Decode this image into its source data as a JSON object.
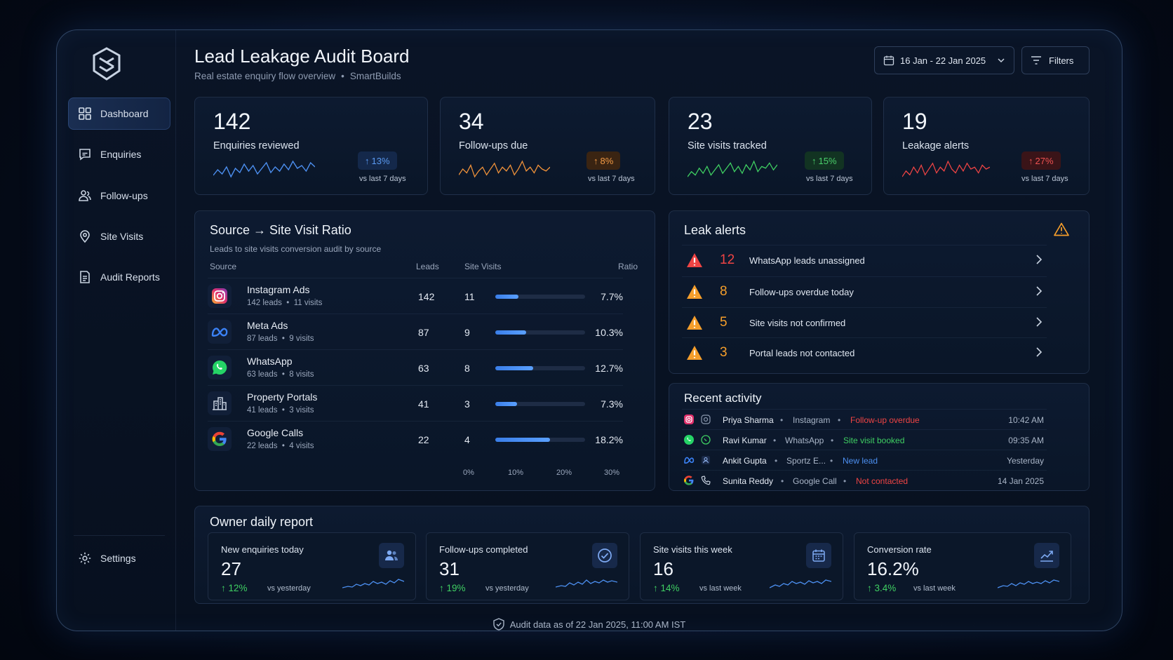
{
  "header": {
    "title": "Lead Leakage Audit Board",
    "subtitle": "Real estate enquiry flow overview",
    "separator": "•",
    "company": "SmartBuilds",
    "date_range": "16 Jan - 22 Jan 2025",
    "filters_label": "Filters"
  },
  "sidebar": {
    "items": [
      {
        "label": "Dashboard",
        "icon": "grid-icon",
        "active": true
      },
      {
        "label": "Enquiries",
        "icon": "chat-icon"
      },
      {
        "label": "Follow-ups",
        "icon": "users-icon"
      },
      {
        "label": "Site Visits",
        "icon": "map-pin-icon"
      },
      {
        "label": "Audit Reports",
        "icon": "report-icon"
      }
    ],
    "settings_label": "Settings"
  },
  "kpis": [
    {
      "value": "142",
      "label": "Enquiries reviewed",
      "delta": "13%",
      "direction": "up",
      "vs": "vs last 7 days",
      "color": "#4c8ff0",
      "spark": [
        10,
        14,
        11,
        16,
        9,
        15,
        12,
        18,
        13,
        17,
        11,
        15,
        19,
        12,
        16,
        13,
        18,
        14,
        20,
        15,
        17,
        13,
        19,
        16
      ]
    },
    {
      "value": "34",
      "label": "Follow-ups due",
      "delta": "8%",
      "direction": "up",
      "vs": "vs last 7 days",
      "color": "#f0923a",
      "spark": [
        12,
        15,
        13,
        17,
        11,
        14,
        16,
        12,
        15,
        18,
        13,
        16,
        14,
        17,
        12,
        15,
        19,
        14,
        16,
        13,
        17,
        15,
        14,
        16
      ]
    },
    {
      "value": "23",
      "label": "Site visits tracked",
      "delta": "15%",
      "direction": "up",
      "vs": "vs last 7 days",
      "color": "#3fcf62",
      "spark": [
        10,
        13,
        11,
        15,
        12,
        16,
        11,
        14,
        17,
        12,
        15,
        18,
        13,
        16,
        12,
        17,
        14,
        19,
        13,
        16,
        15,
        18,
        14,
        17
      ]
    },
    {
      "value": "19",
      "label": "Leakage alerts",
      "delta": "27%",
      "direction": "up",
      "vs": "vs last 7 days",
      "color": "#ef4444",
      "spark": [
        11,
        14,
        12,
        16,
        13,
        17,
        12,
        15,
        18,
        13,
        16,
        14,
        19,
        15,
        13,
        17,
        14,
        18,
        15,
        16,
        13,
        17,
        15,
        16
      ]
    }
  ],
  "source_panel": {
    "title": "Source → Site Visit Ratio",
    "subtitle": "Leads to site visits conversion audit by source",
    "headers": {
      "source": "Source",
      "leads": "Leads",
      "visits": "Site Visits",
      "ratio": "Ratio"
    },
    "rows": [
      {
        "name": "Instagram Ads",
        "meta_leads": "142 leads",
        "meta_visits": "11 visits",
        "leads": "142",
        "visits": "11",
        "ratio": "7.7%",
        "ratio_value": 7.7,
        "icon": "instagram-icon"
      },
      {
        "name": "Meta Ads",
        "meta_leads": "87 leads",
        "meta_visits": "9 visits",
        "leads": "87",
        "visits": "9",
        "ratio": "10.3%",
        "ratio_value": 10.3,
        "icon": "meta-icon"
      },
      {
        "name": "WhatsApp",
        "meta_leads": "63 leads",
        "meta_visits": "8 visits",
        "leads": "63",
        "visits": "8",
        "ratio": "12.7%",
        "ratio_value": 12.7,
        "icon": "whatsapp-icon"
      },
      {
        "name": "Property Portals",
        "meta_leads": "41 leads",
        "meta_visits": "3 visits",
        "leads": "41",
        "visits": "3",
        "ratio": "7.3%",
        "ratio_value": 7.3,
        "icon": "building-icon"
      },
      {
        "name": "Google Calls",
        "meta_leads": "22 leads",
        "meta_visits": "4 visits",
        "leads": "22",
        "visits": "4",
        "ratio": "18.2%",
        "ratio_value": 18.2,
        "icon": "google-icon"
      }
    ],
    "axis_ticks": [
      "0%",
      "10%",
      "20%",
      "30%"
    ]
  },
  "leak_alerts": {
    "title": "Leak alerts",
    "items": [
      {
        "count": "12",
        "text": "WhatsApp leads unassigned",
        "severity": "critical",
        "color": "#ef4444"
      },
      {
        "count": "8",
        "text": "Follow-ups overdue today",
        "severity": "warning",
        "color": "#f59e2b"
      },
      {
        "count": "5",
        "text": "Site visits not confirmed",
        "severity": "warning",
        "color": "#f59e2b"
      },
      {
        "count": "3",
        "text": "Portal leads not contacted",
        "severity": "warning",
        "color": "#f59e2b"
      }
    ]
  },
  "recent_activity": {
    "title": "Recent activity",
    "items": [
      {
        "name": "Priya Sharma",
        "source": "Instagram",
        "status": "Follow-up overdue",
        "status_color": "#ef4444",
        "time": "10:42 AM",
        "icon": "instagram-icon"
      },
      {
        "name": "Ravi Kumar",
        "source": "WhatsApp",
        "status": "Site visit booked",
        "status_color": "#3fcf62",
        "time": "09:35 AM",
        "icon": "whatsapp-icon"
      },
      {
        "name": "Ankit Gupta",
        "source": "Sportz E...",
        "status": "New lead",
        "status_color": "#4c8ff0",
        "time": "Yesterday",
        "icon": "meta-icon"
      },
      {
        "name": "Sunita Reddy",
        "source": "Google Call",
        "status": "Not contacted",
        "status_color": "#ef4444",
        "time": "14 Jan 2025",
        "icon": "google-icon"
      }
    ]
  },
  "owner_report": {
    "title": "Owner daily report",
    "cards": [
      {
        "label": "New enquiries today",
        "value": "27",
        "delta": "12%",
        "vs": "vs yesterday",
        "icon": "users-icon"
      },
      {
        "label": "Follow-ups completed",
        "value": "31",
        "delta": "19%",
        "vs": "vs yesterday",
        "icon": "check-circle-icon"
      },
      {
        "label": "Site visits this week",
        "value": "16",
        "delta": "14%",
        "vs": "vs last week",
        "icon": "calendar-icon"
      },
      {
        "label": "Conversion rate",
        "value": "16.2%",
        "delta": "3.4%",
        "vs": "vs last week",
        "icon": "trend-icon"
      }
    ]
  },
  "footer": {
    "text": "Audit data as of 22 Jan 2025, 11:00 AM IST"
  }
}
